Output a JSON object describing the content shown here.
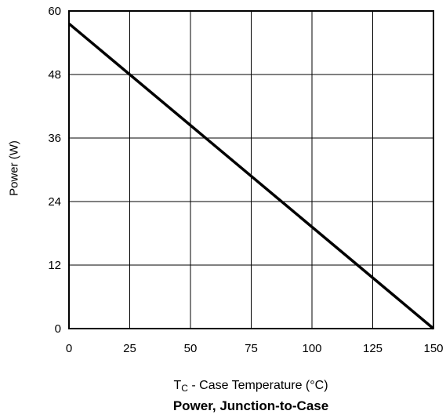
{
  "chart_data": {
    "type": "line",
    "title": "Power, Junction-to-Case",
    "xlabel": {
      "prefix": "T",
      "sub": "C",
      "rest": " - Case Temperature (°C)"
    },
    "ylabel": "Power (W)",
    "xlim": [
      0,
      150
    ],
    "ylim": [
      0,
      60
    ],
    "xticks": [
      0,
      25,
      50,
      75,
      100,
      125,
      150
    ],
    "yticks": [
      0,
      12,
      24,
      36,
      48,
      60
    ],
    "grid": true,
    "series": [
      {
        "x": [
          0,
          150
        ],
        "y": [
          57.6,
          0
        ],
        "color": "#000000"
      }
    ]
  }
}
